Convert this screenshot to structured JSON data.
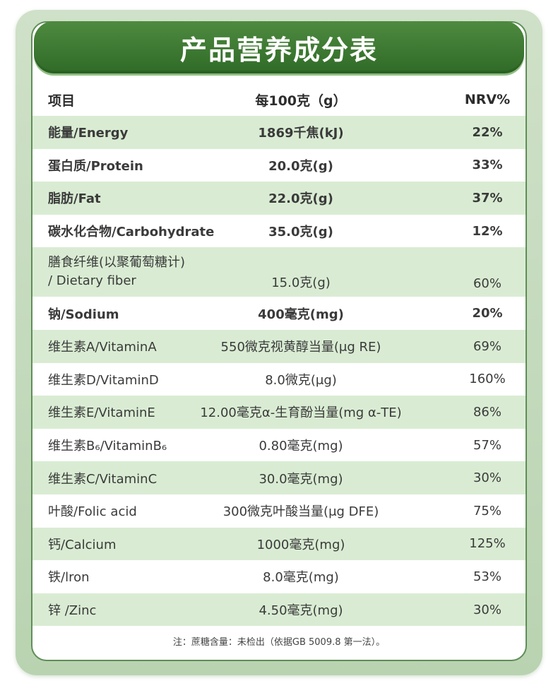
{
  "title": "产品营养成分表",
  "header": {
    "item": "项目",
    "per100": "每100克（g）",
    "nrv": "NRV%"
  },
  "rows": [
    {
      "name": "能量/Energy",
      "value": "1869千焦(kJ)",
      "nrv": "22%"
    },
    {
      "name": "蛋白质/Protein",
      "value": "20.0克(g)",
      "nrv": "33%"
    },
    {
      "name": "脂肪/Fat",
      "value": "22.0克(g)",
      "nrv": "37%"
    },
    {
      "name": "碳水化合物/Carbohydrate",
      "value": "35.0克(g)",
      "nrv": "12%"
    },
    {
      "name_line1": "膳食纤维(以聚葡萄糖计)",
      "name_line2": "/ Dietary fiber",
      "value": "15.0克(g)",
      "nrv": "60%"
    },
    {
      "name": "钠/Sodium",
      "value": "400毫克(mg)",
      "nrv": "20%"
    },
    {
      "name": "维生素A/VitaminA",
      "value": "550微克视黄醇当量(μg RE)",
      "nrv": "69%"
    },
    {
      "name": "维生素D/VitaminD",
      "value": "8.0微克(μg)",
      "nrv": "160%"
    },
    {
      "name": "维生素E/VitaminE",
      "value": "12.00毫克α-生育酚当量(mg α-TE)",
      "nrv": "86%"
    },
    {
      "name": "维生素B₆/VitaminB₆",
      "value": "0.80毫克(mg)",
      "nrv": "57%"
    },
    {
      "name": "维生素C/VitaminC",
      "value": "30.0毫克(mg)",
      "nrv": "30%"
    },
    {
      "name": "叶酸/Folic acid",
      "value": "300微克叶酸当量(μg DFE)",
      "nrv": "75%"
    },
    {
      "name": "钙/Calcium",
      "value": "1000毫克(mg)",
      "nrv": "125%"
    },
    {
      "name": "铁/lron",
      "value": "8.0毫克(mg)",
      "nrv": "53%"
    },
    {
      "name": "锌 /Zinc",
      "value": "4.50毫克(mg)",
      "nrv": "30%"
    }
  ],
  "footnote": "注：蔗糖含量：未检出（依据GB 5009.8 第一法）。",
  "colors": {
    "banner": "#3a7a30",
    "alt_row": "#d9ecd3",
    "frame": "#c3dabb"
  }
}
